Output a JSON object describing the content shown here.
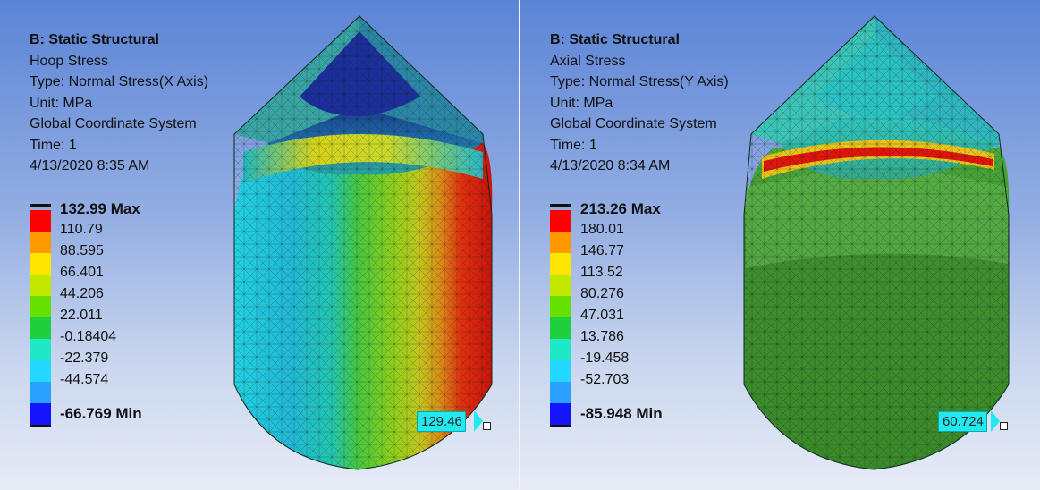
{
  "panels": [
    {
      "title": "B: Static Structural",
      "result_name": "Hoop Stress",
      "type": "Type: Normal Stress(X Axis)",
      "unit": "Unit: MPa",
      "coordinate_system": "Global Coordinate System",
      "time": "Time: 1",
      "timestamp": "4/13/2020 8:35 AM",
      "legend": {
        "max_label": "132.99 Max",
        "min_label": "-66.769 Min",
        "levels": [
          "110.79",
          "88.595",
          "66.401",
          "44.206",
          "22.011",
          "-0.18404",
          "-22.379",
          "-44.574"
        ],
        "colors": [
          "#ff0000",
          "#ff9900",
          "#ffe600",
          "#c3e800",
          "#66e000",
          "#1fcf3d",
          "#1ee8c8",
          "#22d8ff",
          "#2aa2ff",
          "#1414ff"
        ]
      },
      "probe": "129.46"
    },
    {
      "title": "B: Static Structural",
      "result_name": "Axial Stress",
      "type": "Type: Normal Stress(Y Axis)",
      "unit": "Unit: MPa",
      "coordinate_system": "Global Coordinate System",
      "time": "Time: 1",
      "timestamp": "4/13/2020 8:34 AM",
      "legend": {
        "max_label": "213.26 Max",
        "min_label": "-85.948 Min",
        "levels": [
          "180.01",
          "146.77",
          "113.52",
          "80.276",
          "47.031",
          "13.786",
          "-19.458",
          "-52.703"
        ],
        "colors": [
          "#ff0000",
          "#ff9900",
          "#ffe600",
          "#c3e800",
          "#66e000",
          "#1fcf3d",
          "#1ee8c8",
          "#22d8ff",
          "#2aa2ff",
          "#1414ff"
        ]
      },
      "probe": "60.724"
    }
  ]
}
